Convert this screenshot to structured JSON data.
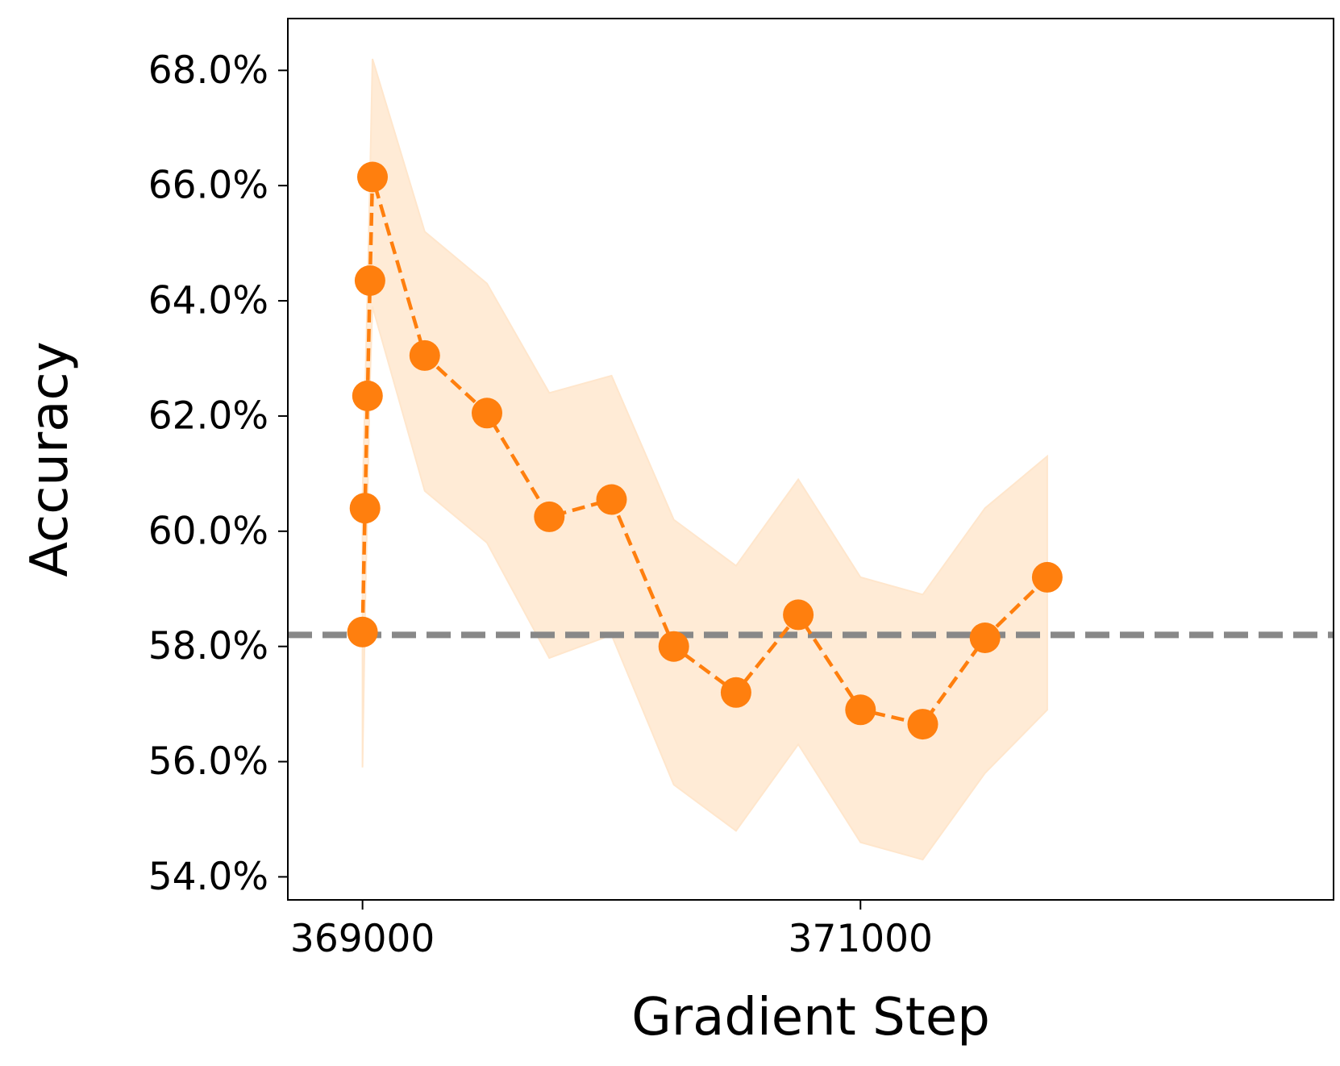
{
  "chart_data": {
    "type": "line",
    "xlabel": "Gradient Step",
    "ylabel": "Accuracy",
    "xlim": [
      368700,
      372900
    ],
    "ylim": [
      53.6,
      68.9
    ],
    "x_ticks": [
      369000,
      371000
    ],
    "x_tick_labels": [
      "369000",
      "371000"
    ],
    "y_ticks": [
      54,
      56,
      58,
      60,
      62,
      64,
      66,
      68
    ],
    "y_tick_labels": [
      "54.0%",
      "56.0%",
      "58.0%",
      "60.0%",
      "62.0%",
      "64.0%",
      "66.0%",
      "68.0%"
    ],
    "grid": false,
    "legend": "none",
    "baseline": {
      "y": 58.2,
      "style": "dashed",
      "color": "#888888"
    },
    "series": [
      {
        "style": "dashed line with circle markers",
        "color": "#ff7f0e",
        "band_color": "#ffe6cc",
        "x": [
          369000,
          369010,
          369020,
          369030,
          369040,
          369250,
          369500,
          369750,
          370000,
          370250,
          370500,
          370750,
          371000,
          371250,
          371500,
          371750
        ],
        "y": [
          58.25,
          60.4,
          62.35,
          64.35,
          66.15,
          63.05,
          62.05,
          60.25,
          60.55,
          58.0,
          57.2,
          58.55,
          56.9,
          56.65,
          58.15,
          59.2
        ],
        "lower": [
          55.9,
          58.5,
          60.5,
          62.6,
          63.9,
          60.7,
          59.8,
          57.8,
          58.2,
          55.6,
          54.8,
          56.3,
          54.6,
          54.3,
          55.8,
          56.9
        ],
        "upper": [
          60.6,
          62.3,
          64.2,
          66.1,
          68.2,
          65.2,
          64.3,
          62.4,
          62.7,
          60.2,
          59.4,
          60.9,
          59.2,
          58.9,
          60.4,
          61.3
        ]
      }
    ]
  }
}
